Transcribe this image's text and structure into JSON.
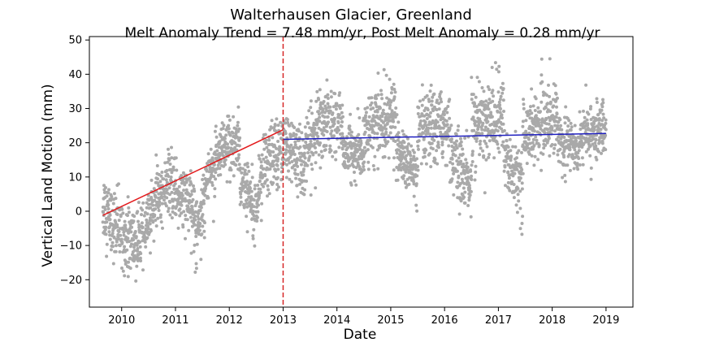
{
  "chart_data": {
    "type": "scatter",
    "title": "Walterhausen Glacier, Greenland",
    "subtitle": "Melt Anomaly Trend = 7.48 mm/yr, Post Melt Anomaly = 0.28 mm/yr",
    "xlabel": "Date",
    "ylabel": "Vertical Land Motion (mm)",
    "xlim": [
      2009.4,
      2019.5
    ],
    "ylim": [
      -28,
      51
    ],
    "x_ticks": [
      2010,
      2011,
      2012,
      2013,
      2014,
      2015,
      2016,
      2017,
      2018,
      2019
    ],
    "x_tick_labels": [
      "2010",
      "2011",
      "2012",
      "2013",
      "2014",
      "2015",
      "2016",
      "2017",
      "2018",
      "2019"
    ],
    "y_ticks": [
      -20,
      -10,
      0,
      10,
      20,
      30,
      40,
      50
    ],
    "y_tick_labels": [
      "−20",
      "−10",
      "0",
      "10",
      "20",
      "30",
      "40",
      "50"
    ],
    "grid": false,
    "colors": {
      "points": "#a9a9a9",
      "melt_trend": "#e31a1c",
      "post_trend": "#1f1fbf",
      "event_line": "#d62728"
    },
    "scatter_series": {
      "description_points": "daily GNSS vertical positions",
      "x_range": [
        2009.65,
        2019.0
      ],
      "segments": [
        {
          "x": [
            2009.65,
            2009.85
          ],
          "y": [
            2,
            -4
          ],
          "spread": 5
        },
        {
          "x": [
            2009.85,
            2010.3
          ],
          "y": [
            -4,
            -10
          ],
          "spread": 5
        },
        {
          "x": [
            2010.3,
            2010.55
          ],
          "y": [
            -10,
            -2
          ],
          "spread": 4
        },
        {
          "x": [
            2010.55,
            2010.9
          ],
          "y": [
            2,
            8
          ],
          "spread": 4
        },
        {
          "x": [
            2010.9,
            2011.35
          ],
          "y": [
            8,
            0
          ],
          "spread": 5
        },
        {
          "x": [
            2011.35,
            2011.55
          ],
          "y": [
            -6,
            4
          ],
          "spread": 5
        },
        {
          "x": [
            2011.55,
            2011.95
          ],
          "y": [
            10,
            18
          ],
          "spread": 4
        },
        {
          "x": [
            2011.95,
            2012.2
          ],
          "y": [
            18,
            20
          ],
          "spread": 5
        },
        {
          "x": [
            2012.2,
            2012.55
          ],
          "y": [
            8,
            2
          ],
          "spread": 4
        },
        {
          "x": [
            2012.55,
            2013.0
          ],
          "y": [
            10,
            20
          ],
          "spread": 5
        },
        {
          "x": [
            2013.0,
            2013.35
          ],
          "y": [
            20,
            14
          ],
          "spread": 5
        },
        {
          "x": [
            2013.35,
            2013.7
          ],
          "y": [
            14,
            26
          ],
          "spread": 5
        },
        {
          "x": [
            2013.7,
            2014.1
          ],
          "y": [
            26,
            26
          ],
          "spread": 5
        },
        {
          "x": [
            2014.1,
            2014.5
          ],
          "y": [
            18,
            16
          ],
          "spread": 4
        },
        {
          "x": [
            2014.5,
            2015.1
          ],
          "y": [
            24,
            28
          ],
          "spread": 5
        },
        {
          "x": [
            2015.1,
            2015.5
          ],
          "y": [
            18,
            10
          ],
          "spread": 4
        },
        {
          "x": [
            2015.5,
            2016.1
          ],
          "y": [
            22,
            26
          ],
          "spread": 5
        },
        {
          "x": [
            2016.1,
            2016.5
          ],
          "y": [
            16,
            8
          ],
          "spread": 5
        },
        {
          "x": [
            2016.5,
            2017.1
          ],
          "y": [
            24,
            28
          ],
          "spread": 6
        },
        {
          "x": [
            2017.1,
            2017.45
          ],
          "y": [
            16,
            8
          ],
          "spread": 5
        },
        {
          "x": [
            2017.45,
            2018.1
          ],
          "y": [
            22,
            28
          ],
          "spread": 5
        },
        {
          "x": [
            2018.1,
            2018.5
          ],
          "y": [
            22,
            18
          ],
          "spread": 4
        },
        {
          "x": [
            2018.5,
            2019.0
          ],
          "y": [
            22,
            24
          ],
          "spread": 4
        }
      ]
    },
    "trend_lines": [
      {
        "name": "Melt Anomaly Trend",
        "x": [
          2009.65,
          2013.0
        ],
        "y": [
          -1.2,
          23.8
        ]
      },
      {
        "name": "Post Melt Anomaly",
        "x": [
          2013.0,
          2019.0
        ],
        "y": [
          21.0,
          22.7
        ]
      }
    ],
    "event_line": {
      "x": 2013.0,
      "style": "dashed"
    }
  }
}
